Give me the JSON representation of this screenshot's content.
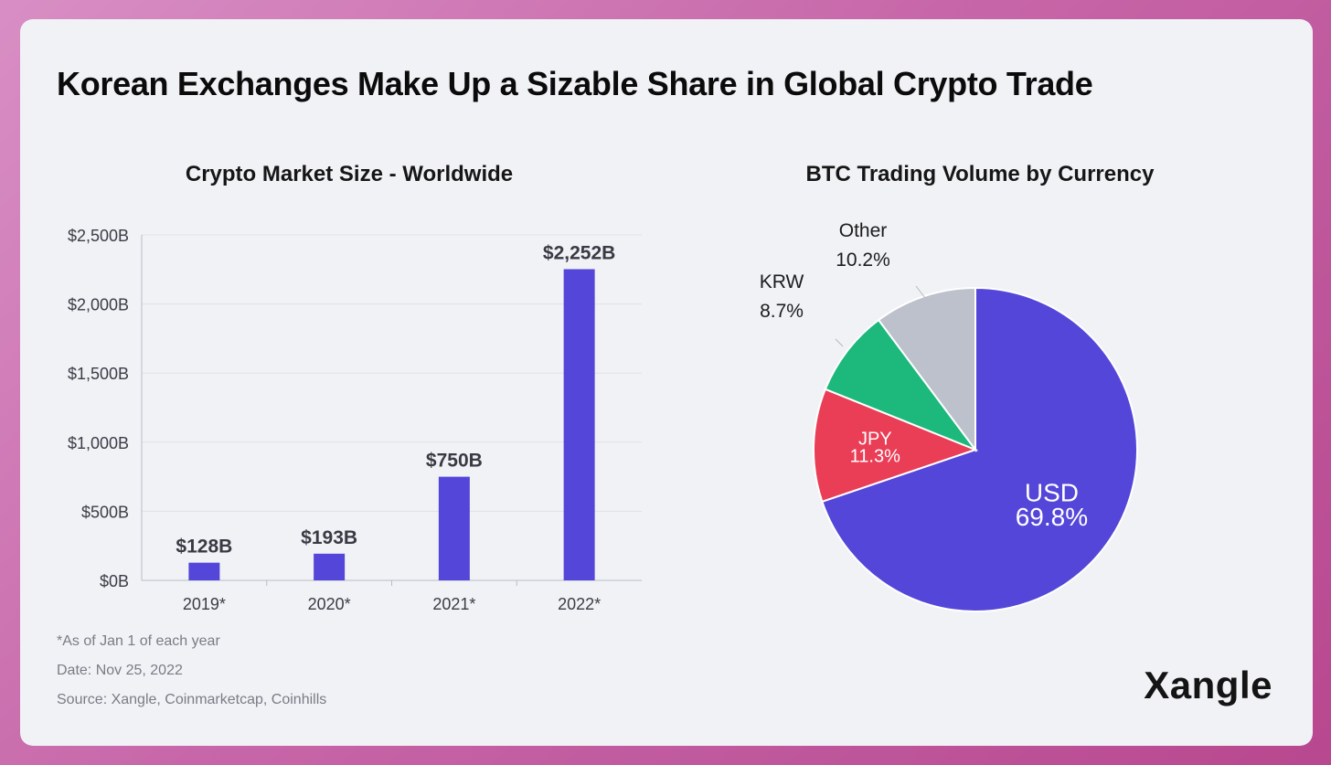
{
  "title": "Korean Exchanges Make Up a Sizable Share in Global Crypto Trade",
  "chart_data": [
    {
      "type": "bar",
      "title": "Crypto Market Size - Worldwide",
      "categories": [
        "2019*",
        "2020*",
        "2021*",
        "2022*"
      ],
      "values": [
        128,
        193,
        750,
        2252
      ],
      "value_labels": [
        "$128B",
        "$193B",
        "$750B",
        "$2,252B"
      ],
      "ylim": [
        0,
        2500
      ],
      "yticks": [
        0,
        500,
        1000,
        1500,
        2000,
        2500
      ],
      "ytick_labels": [
        "$0B",
        "$500B",
        "$1,000B",
        "$1,500B",
        "$2,000B",
        "$2,500B"
      ],
      "xlabel": "",
      "ylabel": "",
      "grid": true,
      "color": "#5446d8"
    },
    {
      "type": "pie",
      "title": "BTC Trading Volume by Currency",
      "slices": [
        {
          "label": "USD",
          "value": 69.8,
          "pct_label": "69.8%",
          "color": "#5446d8"
        },
        {
          "label": "JPY",
          "value": 11.3,
          "pct_label": "11.3%",
          "color": "#ea3d56"
        },
        {
          "label": "KRW",
          "value": 8.7,
          "pct_label": "8.7%",
          "color": "#1db87c"
        },
        {
          "label": "Other",
          "value": 10.2,
          "pct_label": "10.2%",
          "color": "#bcc1cb"
        }
      ]
    }
  ],
  "notes": {
    "asof": "*As of Jan 1 of each year",
    "date": "Date: Nov 25, 2022",
    "source": "Source: Xangle, Coinmarketcap, Coinhills"
  },
  "logo": "Xangle"
}
